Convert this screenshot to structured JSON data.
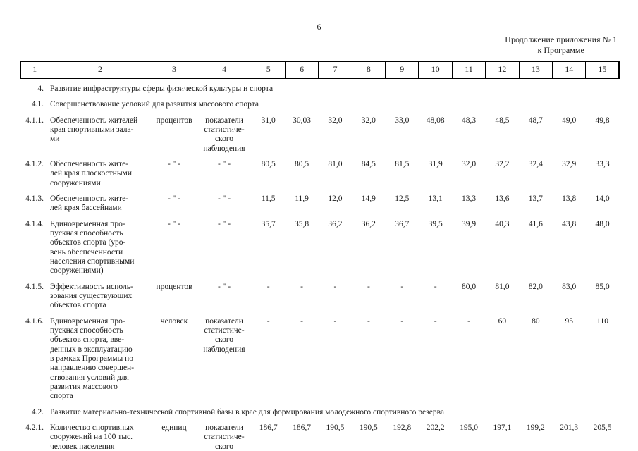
{
  "page": {
    "number": "6",
    "appendix": {
      "line1": "Продолжение приложения № 1",
      "line2": "к Программе"
    }
  },
  "table": {
    "column_headers": [
      "1",
      "2",
      "3",
      "4",
      "5",
      "6",
      "7",
      "8",
      "9",
      "10",
      "11",
      "12",
      "13",
      "14",
      "15"
    ],
    "rows": [
      {
        "type": "section",
        "num": "4.",
        "title": "Развитие инфраструктуры сферы физической культуры и спорта"
      },
      {
        "type": "section",
        "num": "4.1.",
        "title": "Совершенствование условий для развития массового спорта"
      },
      {
        "type": "data",
        "num": "4.1.1.",
        "name": "Обеспеченность жителей\nкрая спортивными зала-\nми",
        "unit": "процентов",
        "source": "показатели\nстатистиче-\nского\nнаблюдения",
        "values": [
          "31,0",
          "30,03",
          "32,0",
          "32,0",
          "33,0",
          "48,08",
          "48,3",
          "48,5",
          "48,7",
          "49,0",
          "49,8"
        ]
      },
      {
        "type": "data",
        "num": "4.1.2.",
        "name": "Обеспеченность жите-\nлей края плоскостными\nсооружениями",
        "unit": "- \" -",
        "source": "- \" -",
        "values": [
          "80,5",
          "80,5",
          "81,0",
          "84,5",
          "81,5",
          "31,9",
          "32,0",
          "32,2",
          "32,4",
          "32,9",
          "33,3"
        ]
      },
      {
        "type": "data",
        "num": "4.1.3.",
        "name": "Обеспеченность жите-\nлей края бассейнами",
        "unit": "- \" -",
        "source": "- \" -",
        "values": [
          "11,5",
          "11,9",
          "12,0",
          "14,9",
          "12,5",
          "13,1",
          "13,3",
          "13,6",
          "13,7",
          "13,8",
          "14,0"
        ]
      },
      {
        "type": "data",
        "num": "4.1.4.",
        "name": "Единовременная про-\nпускная способность\nобъектов спорта (уро-\nвень обеспеченности\nнаселения спортивными\nсооружениями)",
        "unit": "- \" -",
        "source": "- \" -",
        "values": [
          "35,7",
          "35,8",
          "36,2",
          "36,2",
          "36,7",
          "39,5",
          "39,9",
          "40,3",
          "41,6",
          "43,8",
          "48,0"
        ]
      },
      {
        "type": "data",
        "num": "4.1.5.",
        "name": "Эффективность исполь-\nзования существующих\nобъектов спорта",
        "unit": "процентов",
        "source": "- \" -",
        "values": [
          "-",
          "-",
          "-",
          "-",
          "-",
          "-",
          "80,0",
          "81,0",
          "82,0",
          "83,0",
          "85,0"
        ]
      },
      {
        "type": "data",
        "num": "4.1.6.",
        "name": "Единовременная про-\nпускная способность\nобъектов спорта, вве-\nденных в эксплуатацию\nв рамках Программы по\nнаправлению совершен-\nствования условий для\nразвития массового\nспорта",
        "unit": "человек",
        "source": "показатели\nстатистиче-\nского\nнаблюдения",
        "values": [
          "-",
          "-",
          "-",
          "-",
          "-",
          "-",
          "-",
          "60",
          "80",
          "95",
          "110"
        ]
      },
      {
        "type": "section",
        "num": "4.2.",
        "title": "Развитие материально-технической спортивной базы в крае для формирования молодежного спортивного резерва"
      },
      {
        "type": "data",
        "num": "4.2.1.",
        "name": "Количество спортивных\nсооружений на 100 тыс.\nчеловек населения",
        "unit": "единиц",
        "source": "показатели\nстатистиче-\nского\nнаблюдения",
        "values": [
          "186,7",
          "186,7",
          "190,5",
          "190,5",
          "192,8",
          "202,2",
          "195,0",
          "197,1",
          "199,2",
          "201,3",
          "205,5"
        ]
      }
    ]
  }
}
